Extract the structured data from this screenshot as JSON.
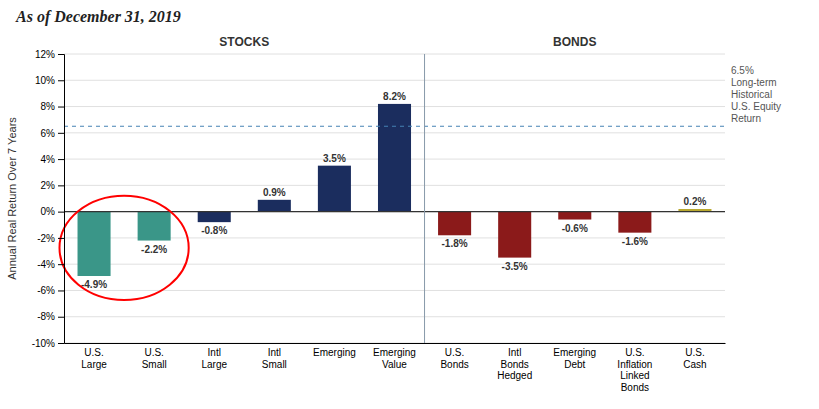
{
  "chart_data": {
    "type": "bar",
    "title": "As of December 31, 2019",
    "ylabel": "Annual Real Return Over 7 Years",
    "categories": [
      "U.S.\nLarge",
      "U.S.\nSmall",
      "Intl\nLarge",
      "Intl\nSmall",
      "Emerging",
      "Emerging\nValue",
      "U.S.\nBonds",
      "Intl\nBonds\nHedged",
      "Emerging\nDebt",
      "U.S.\nInflation\nLinked\nBonds",
      "U.S.\nCash"
    ],
    "values": [
      -4.9,
      -2.2,
      -0.8,
      0.9,
      3.5,
      8.2,
      -1.8,
      -3.5,
      -0.6,
      -1.6,
      0.2
    ],
    "value_labels": [
      "-4.9%",
      "-2.2%",
      "-0.8%",
      "0.9%",
      "3.5%",
      "8.2%",
      "-1.8%",
      "-3.5%",
      "-0.6%",
      "-1.6%",
      "0.2%"
    ],
    "colors": [
      "#3a9688",
      "#3a9688",
      "#1b2d5e",
      "#1b2d5e",
      "#1b2d5e",
      "#1b2d5e",
      "#8b1a1a",
      "#8b1a1a",
      "#8b1a1a",
      "#8b1a1a",
      "#b8a830"
    ],
    "ylim": [
      -10,
      12
    ],
    "yticks": [
      {
        "value": -10,
        "label": "-10%"
      },
      {
        "value": -8,
        "label": "-8%"
      },
      {
        "value": -6,
        "label": "-6%"
      },
      {
        "value": -4,
        "label": "-4%"
      },
      {
        "value": -2,
        "label": "-2%"
      },
      {
        "value": 0,
        "label": "0%"
      },
      {
        "value": 2,
        "label": "2%"
      },
      {
        "value": 4,
        "label": "4%"
      },
      {
        "value": 6,
        "label": "6%"
      },
      {
        "value": 8,
        "label": "8%"
      },
      {
        "value": 10,
        "label": "10%"
      },
      {
        "value": 12,
        "label": "12%"
      }
    ],
    "grid": true,
    "sections": [
      {
        "label": "STOCKS",
        "size": 6
      },
      {
        "label": "BONDS",
        "size": 5
      }
    ],
    "reference_line": {
      "value": 6.5,
      "label": "6.5%\nLong-term\nHistorical\nU.S. Equity\nReturn"
    },
    "highlight": {
      "categories": [
        "U.S.\nLarge",
        "U.S.\nSmall"
      ],
      "color": "red"
    }
  }
}
